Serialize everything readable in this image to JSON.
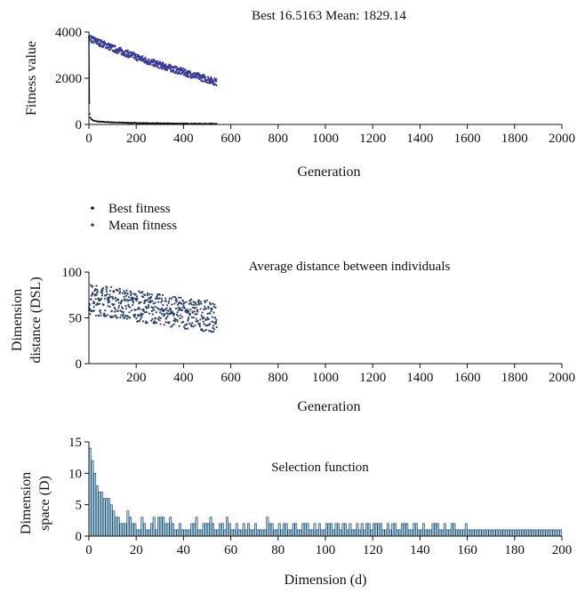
{
  "colors": {
    "best": "#111111",
    "mean": "#3a3a9a",
    "distance": "#2a3f6b",
    "bar_fill": "#a9d6ea",
    "bar_stroke": "#1f3a52"
  },
  "chart_data": [
    {
      "type": "scatter",
      "title": "Best 16.5163 Mean: 1829.14",
      "xlabel": "Generation",
      "ylabel": "Fitness value",
      "xlim": [
        0,
        2000
      ],
      "ylim": [
        0,
        4000
      ],
      "xticks": [
        "0",
        "200",
        "400",
        "600",
        "800",
        "1000",
        "1200",
        "1400",
        "1600",
        "1800",
        "2000"
      ],
      "yticks": [
        "0",
        "2000",
        "4000"
      ],
      "legend": {
        "placement": "below",
        "entries": [
          "Best fitness",
          "Mean fitness"
        ]
      },
      "series": [
        {
          "name": "Best fitness",
          "color": "#111111",
          "x": [
            0,
            2,
            4,
            6,
            10,
            15,
            20,
            30,
            40,
            60,
            80,
            100,
            130,
            160,
            200,
            250,
            300,
            350,
            400,
            450,
            500,
            540
          ],
          "y": [
            3600,
            900,
            450,
            300,
            220,
            170,
            150,
            130,
            110,
            100,
            90,
            80,
            70,
            60,
            50,
            40,
            35,
            30,
            25,
            20,
            18,
            16.5
          ]
        },
        {
          "name": "Mean fitness",
          "color": "#3a3a9a",
          "x": [
            0,
            20,
            40,
            60,
            80,
            100,
            140,
            180,
            220,
            260,
            300,
            340,
            380,
            420,
            460,
            500,
            540
          ],
          "y": [
            3700,
            3650,
            3560,
            3480,
            3400,
            3300,
            3150,
            3000,
            2850,
            2700,
            2570,
            2450,
            2330,
            2200,
            2080,
            1960,
            1830
          ]
        }
      ]
    },
    {
      "type": "scatter",
      "title": "Average distance between individuals",
      "xlabel": "Generation",
      "ylabel": "Dimension distance (DSL)",
      "ylabel_lines": [
        "Dimension",
        "distance (DSL)"
      ],
      "xlim": [
        0,
        2000
      ],
      "ylim": [
        0,
        100
      ],
      "xticks": [
        "200",
        "400",
        "600",
        "800",
        "1000",
        "1200",
        "1400",
        "1600",
        "1800",
        "2000"
      ],
      "yticks": [
        "0",
        "50",
        "100"
      ],
      "series": [
        {
          "name": "",
          "color": "#2a3f6b",
          "x": [
            0,
            50,
            100,
            150,
            200,
            250,
            300,
            350,
            400,
            450,
            500,
            540
          ],
          "y": [
            70,
            69,
            67,
            65,
            63,
            61,
            59,
            57,
            55,
            54,
            52,
            51
          ]
        }
      ]
    },
    {
      "type": "bar",
      "title": "Selection function",
      "xlabel": "Dimension (d)",
      "ylabel": "Dimension space (D)",
      "ylabel_lines": [
        "Dimension",
        "space (D)"
      ],
      "xlim": [
        0,
        200
      ],
      "ylim": [
        0,
        15
      ],
      "xticks": [
        "0",
        "20",
        "40",
        "60",
        "80",
        "100",
        "120",
        "140",
        "160",
        "180",
        "200"
      ],
      "yticks": [
        "0",
        "5",
        "10",
        "15"
      ],
      "x": [
        0,
        1,
        2,
        3,
        4,
        5,
        6,
        7,
        8,
        9,
        10,
        11,
        12,
        13,
        14,
        15,
        16,
        17,
        18,
        19,
        20,
        21,
        22,
        23,
        24,
        25,
        26,
        27,
        28,
        29,
        30,
        31,
        32,
        33,
        34,
        35,
        36,
        37,
        38,
        39,
        40,
        41,
        42,
        43,
        44,
        45,
        46,
        47,
        48,
        49,
        50,
        51,
        52,
        53,
        54,
        55,
        56,
        57,
        58,
        59,
        60,
        61,
        62,
        63,
        64,
        65,
        66,
        67,
        68,
        69,
        70,
        71,
        72,
        73,
        74,
        75,
        76,
        77,
        78,
        79,
        80,
        81,
        82,
        83,
        84,
        85,
        86,
        87,
        88,
        89,
        90,
        91,
        92,
        93,
        94,
        95,
        96,
        97,
        98,
        99,
        100,
        101,
        102,
        103,
        104,
        105,
        106,
        107,
        108,
        109,
        110,
        111,
        112,
        113,
        114,
        115,
        116,
        117,
        118,
        119,
        120,
        121,
        122,
        123,
        124,
        125,
        126,
        127,
        128,
        129,
        130,
        131,
        132,
        133,
        134,
        135,
        136,
        137,
        138,
        139,
        140,
        141,
        142,
        143,
        144,
        145,
        146,
        147,
        148,
        149,
        150,
        151,
        152,
        153,
        154,
        155,
        156,
        157,
        158,
        159,
        160,
        161,
        162,
        163,
        164,
        165,
        166,
        167,
        168,
        169,
        170,
        171,
        172,
        173,
        174,
        175,
        176,
        177,
        178,
        179,
        180,
        181,
        182,
        183,
        184,
        185,
        186,
        187,
        188,
        189,
        190,
        191,
        192,
        193,
        194,
        195,
        196,
        197,
        198,
        199
      ],
      "values": [
        14,
        12,
        10,
        8,
        7,
        7,
        6,
        6,
        6,
        5,
        4,
        3,
        3,
        2,
        2,
        2,
        4,
        3,
        2,
        2,
        1,
        1,
        3,
        2,
        1,
        1,
        2,
        3,
        1,
        3,
        3,
        3,
        2,
        2,
        3,
        2,
        1,
        1,
        2,
        1,
        1,
        1,
        1,
        2,
        2,
        3,
        1,
        1,
        2,
        2,
        2,
        3,
        2,
        1,
        1,
        2,
        2,
        1,
        3,
        2,
        1,
        1,
        2,
        1,
        1,
        2,
        1,
        2,
        1,
        1,
        2,
        1,
        1,
        1,
        1,
        3,
        2,
        2,
        1,
        1,
        2,
        1,
        2,
        2,
        1,
        1,
        2,
        2,
        1,
        1,
        2,
        2,
        2,
        1,
        1,
        2,
        1,
        2,
        1,
        1,
        2,
        2,
        2,
        1,
        2,
        2,
        1,
        2,
        2,
        1,
        2,
        1,
        1,
        2,
        1,
        2,
        1,
        2,
        2,
        1,
        2,
        2,
        2,
        2,
        1,
        1,
        2,
        1,
        2,
        2,
        1,
        1,
        2,
        2,
        2,
        1,
        1,
        2,
        2,
        1,
        1,
        2,
        1,
        1,
        1,
        2,
        2,
        2,
        1,
        1,
        2,
        1,
        1,
        2,
        2,
        1,
        1,
        1,
        1,
        2,
        1,
        1,
        1,
        1,
        1,
        1,
        1,
        1,
        1,
        1,
        1,
        1,
        1,
        1,
        1,
        1,
        1,
        1,
        1,
        1,
        1,
        1,
        1,
        1,
        1,
        1,
        1,
        1,
        1,
        1,
        1,
        1,
        1,
        1,
        1,
        1,
        1,
        1,
        1,
        1
      ]
    }
  ]
}
